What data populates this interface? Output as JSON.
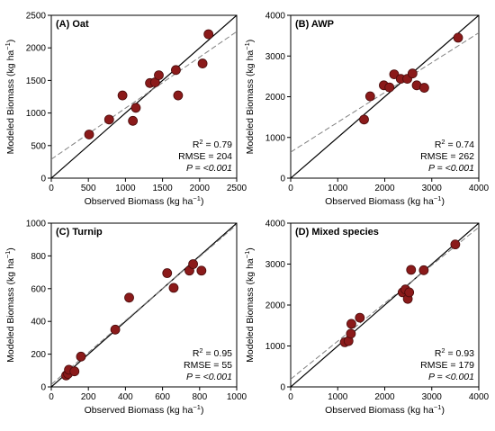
{
  "chart_data": [
    {
      "type": "scatter",
      "panel": "A",
      "title": "(A) Oat",
      "xlabel": "Observed Biomass (kg ha",
      "ylabel": "Modeled Biomass (kg ha",
      "unit_superscript": "−1",
      "xlim": [
        0,
        2500
      ],
      "ylim": [
        0,
        2500
      ],
      "xticks": [
        0,
        500,
        1000,
        1500,
        2000,
        2500
      ],
      "yticks": [
        0,
        500,
        1000,
        1500,
        2000,
        2500
      ],
      "points": [
        [
          510,
          670
        ],
        [
          780,
          900
        ],
        [
          960,
          1270
        ],
        [
          1100,
          880
        ],
        [
          1140,
          1080
        ],
        [
          1330,
          1460
        ],
        [
          1400,
          1470
        ],
        [
          1450,
          1580
        ],
        [
          1680,
          1660
        ],
        [
          1710,
          1270
        ],
        [
          2040,
          1760
        ],
        [
          2120,
          2210
        ]
      ],
      "fit": [
        [
          0,
          290
        ],
        [
          2500,
          2250
        ]
      ],
      "stats": {
        "r2_label": "R",
        "r2_sup": "2",
        "r2_value": " = 0.79",
        "rmse": "RMSE = 204",
        "p_label": "P",
        "p_value": " = <0.001"
      }
    },
    {
      "type": "scatter",
      "panel": "B",
      "title": "(B) AWP",
      "xlabel": "Observed Biomass (kg ha",
      "ylabel": "Modeled Biomass (kg ha",
      "unit_superscript": "−1",
      "xlim": [
        0,
        4000
      ],
      "ylim": [
        0,
        4000
      ],
      "xticks": [
        0,
        1000,
        2000,
        3000,
        4000
      ],
      "yticks": [
        0,
        1000,
        2000,
        3000,
        4000
      ],
      "points": [
        [
          1560,
          1440
        ],
        [
          1690,
          2010
        ],
        [
          1980,
          2280
        ],
        [
          2100,
          2230
        ],
        [
          2200,
          2550
        ],
        [
          2340,
          2440
        ],
        [
          2480,
          2440
        ],
        [
          2590,
          2570
        ],
        [
          2680,
          2280
        ],
        [
          2840,
          2220
        ],
        [
          3560,
          3450
        ]
      ],
      "fit": [
        [
          0,
          640
        ],
        [
          4000,
          3570
        ]
      ],
      "stats": {
        "r2_label": "R",
        "r2_sup": "2",
        "r2_value": " = 0.74",
        "rmse": "RMSE = 262",
        "p_label": "P",
        "p_value": " = <0.001"
      }
    },
    {
      "type": "scatter",
      "panel": "C",
      "title": "(C) Turnip",
      "xlabel": "Observed Biomass (kg ha",
      "ylabel": "Modeled Biomass (kg ha",
      "unit_superscript": "−1",
      "xlim": [
        0,
        1000
      ],
      "ylim": [
        0,
        1000
      ],
      "xticks": [
        0,
        200,
        400,
        600,
        800,
        1000
      ],
      "yticks": [
        0,
        200,
        400,
        600,
        800,
        1000
      ],
      "points": [
        [
          80,
          70
        ],
        [
          90,
          80
        ],
        [
          95,
          105
        ],
        [
          125,
          95
        ],
        [
          160,
          185
        ],
        [
          345,
          350
        ],
        [
          420,
          545
        ],
        [
          625,
          695
        ],
        [
          660,
          605
        ],
        [
          745,
          710
        ],
        [
          765,
          750
        ],
        [
          810,
          710
        ]
      ],
      "fit": [
        [
          0,
          15
        ],
        [
          1000,
          990
        ]
      ],
      "stats": {
        "r2_label": "R",
        "r2_sup": "2",
        "r2_value": " = 0.95",
        "rmse": "RMSE = 55",
        "p_label": "P",
        "p_value": " = <0.001"
      }
    },
    {
      "type": "scatter",
      "panel": "D",
      "title": "(D) Mixed species",
      "xlabel": "Observed Biomass (kg ha",
      "ylabel": "Modeled Biomass (kg ha",
      "unit_superscript": "−1",
      "xlim": [
        0,
        4000
      ],
      "ylim": [
        0,
        4000
      ],
      "xticks": [
        0,
        1000,
        2000,
        3000,
        4000
      ],
      "yticks": [
        0,
        1000,
        2000,
        3000,
        4000
      ],
      "points": [
        [
          1150,
          1090
        ],
        [
          1230,
          1120
        ],
        [
          1280,
          1300
        ],
        [
          1290,
          1540
        ],
        [
          1470,
          1690
        ],
        [
          2380,
          2310
        ],
        [
          2440,
          2380
        ],
        [
          2490,
          2150
        ],
        [
          2520,
          2310
        ],
        [
          2560,
          2860
        ],
        [
          2830,
          2850
        ],
        [
          3500,
          3480
        ]
      ],
      "fit": [
        [
          0,
          190
        ],
        [
          4000,
          3900
        ]
      ],
      "stats": {
        "r2_label": "R",
        "r2_sup": "2",
        "r2_value": " = 0.93",
        "rmse": "RMSE = 179",
        "p_label": "P",
        "p_value": " = <0.001"
      }
    }
  ],
  "colors": {
    "marker_fill": "#8b1a1a",
    "marker_stroke": "#4a0c0c",
    "one_to_one": "#000000",
    "fit_line": "#808080"
  }
}
